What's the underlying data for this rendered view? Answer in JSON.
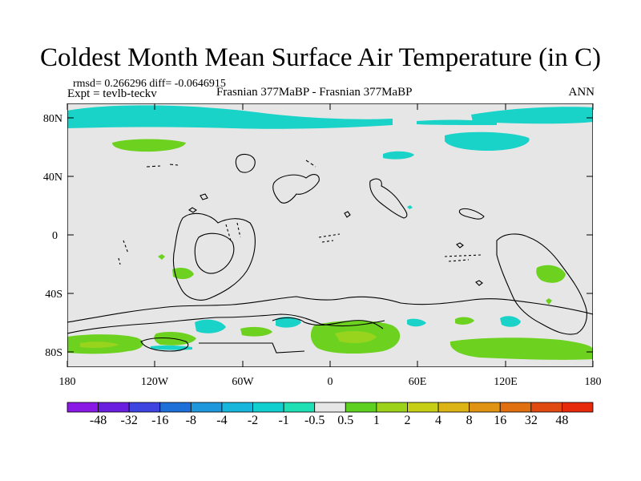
{
  "title": "Coldest Month Mean Surface Air Temperature (in C)",
  "stats_line": "rmsd= 0.266296 diff= -0.0646915",
  "expt_line": "Expt = tevlb-teckv",
  "center_label": "Frasnian 377MaBP - Frasnian 377MaBP",
  "right_label": "ANN",
  "y_ticks": [
    "80N",
    "40N",
    "0",
    "40S",
    "80S"
  ],
  "x_ticks": [
    "180",
    "120W",
    "60W",
    "0",
    "60E",
    "120E",
    "180"
  ],
  "colorbar": {
    "labels": [
      "-48",
      "-32",
      "-16",
      "-8",
      "-4",
      "-2",
      "-1",
      "-0.5",
      "0.5",
      "1",
      "2",
      "4",
      "8",
      "16",
      "32",
      "48"
    ],
    "colors": [
      "#8a19e6",
      "#6a1fe0",
      "#3d44e0",
      "#1f6fd9",
      "#1e97dc",
      "#19b6dc",
      "#12cfcf",
      "#1ee0b4",
      "#e6e6e6",
      "#5ed01f",
      "#9cd31a",
      "#c6cf15",
      "#dcb415",
      "#e09212",
      "#e0700f",
      "#e04a10",
      "#e82a0c"
    ]
  },
  "colors": {
    "background": "#e6e6e6",
    "cyan": "#19d2c8",
    "green": "#6dd11f",
    "green_light": "#98d41e"
  }
}
